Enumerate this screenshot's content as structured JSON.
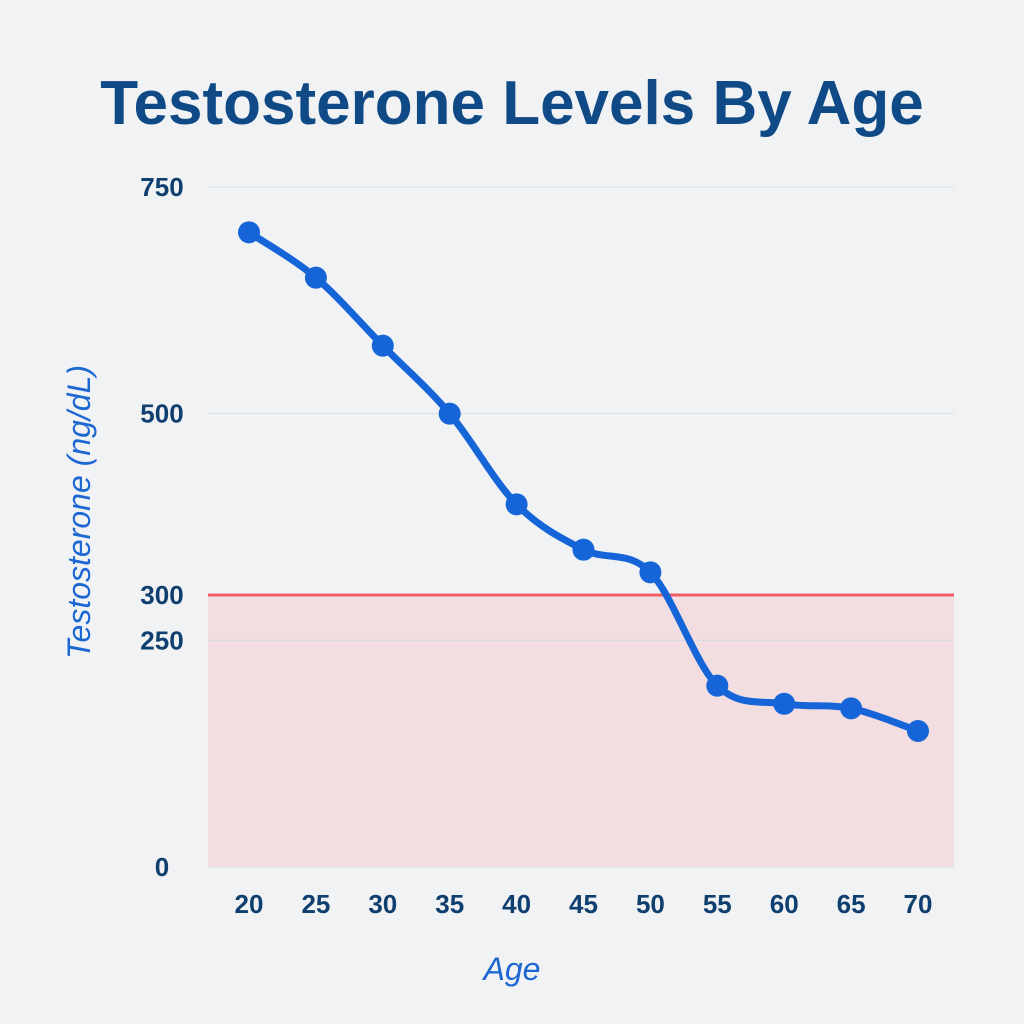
{
  "colors": {
    "background": "#f1f2f4",
    "title": "#0f4a86",
    "tick_label": "#0f3f6e",
    "axis_title": "#1d67d3",
    "series_line": "#1565d8",
    "threshold_line": "#ef5d66",
    "threshold_fill": "#f2dde0",
    "gridline": "#d6dde6"
  },
  "chart_data": {
    "type": "line",
    "title": "Testosterone Levels By Age",
    "xlabel": "Age",
    "ylabel": "Testosterone (ng/dL)",
    "x": [
      20,
      25,
      30,
      35,
      40,
      45,
      50,
      55,
      60,
      65,
      70
    ],
    "x_tick_labels": [
      "20",
      "25",
      "30",
      "35",
      "40",
      "45",
      "50",
      "55",
      "60",
      "65",
      "70"
    ],
    "series": [
      {
        "values": [
          700,
          650,
          575,
          500,
          400,
          350,
          325,
          200,
          180,
          175,
          150
        ]
      }
    ],
    "ylim": [
      0,
      750
    ],
    "y_ticks": [
      0,
      250,
      300,
      500,
      750
    ],
    "y_tick_labels": [
      "0",
      "250",
      "300",
      "500",
      "750"
    ],
    "gridlines_at": [
      250,
      500,
      750
    ],
    "grid": true,
    "threshold": {
      "value": 300,
      "shaded_below": true
    },
    "legend": "none"
  }
}
